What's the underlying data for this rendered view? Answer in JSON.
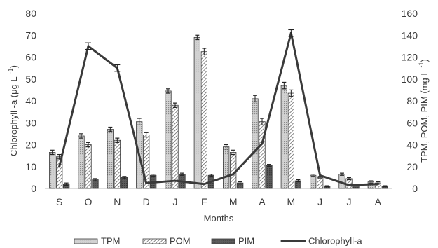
{
  "chart_data": {
    "type": "bar",
    "xlabel": "Months",
    "ylabel_left": "Chlorophyll  -a (μg L",
    "ylabel_left_sup": "-1",
    "ylabel_right": "TPM, POM, PIM (mg L",
    "ylabel_right_sup": "-1",
    "categories": [
      "S",
      "O",
      "N",
      "D",
      "J",
      "F",
      "M",
      "A",
      "M",
      "J",
      "J",
      "A"
    ],
    "ylim_left": [
      0,
      80
    ],
    "yticks_left": [
      "0",
      "10",
      "20",
      "30",
      "40",
      "50",
      "60",
      "70",
      "80"
    ],
    "ylim_right": [
      0,
      160
    ],
    "yticks_right": [
      "0",
      "20",
      "40",
      "60",
      "80",
      "100",
      "120",
      "140",
      "160"
    ],
    "grid": false,
    "legend_position": "bottom",
    "series": [
      {
        "name": "TPM",
        "axis": "right",
        "kind": "bar",
        "fill": "#c8c8c8",
        "hatch": "dots",
        "values": [
          33,
          48,
          54,
          61,
          89,
          138,
          38,
          82,
          94,
          12,
          13,
          6
        ],
        "errors": [
          2,
          2,
          2,
          3,
          2,
          2,
          2,
          3,
          3,
          1,
          1,
          1
        ]
      },
      {
        "name": "POM",
        "axis": "right",
        "kind": "bar",
        "fill": "#ffffff",
        "hatch": "diagonal",
        "values": [
          29,
          40,
          44,
          49,
          76,
          125,
          33,
          61,
          87,
          10,
          9,
          5
        ],
        "errors": [
          2,
          2,
          2,
          2,
          2,
          3,
          2,
          3,
          3,
          1,
          1,
          1
        ]
      },
      {
        "name": "PIM",
        "axis": "right",
        "kind": "bar",
        "fill": "#5a5a5a",
        "hatch": "crosshatch",
        "values": [
          4,
          8,
          10,
          12,
          13,
          12,
          5,
          21,
          7,
          2,
          3,
          2
        ],
        "errors": [
          1,
          1,
          1,
          1,
          1,
          1,
          1,
          1,
          1,
          0.5,
          0.5,
          0.5
        ]
      },
      {
        "name": "Chlorophyll-a",
        "axis": "left",
        "kind": "line",
        "color": "#3a3a3a",
        "values": [
          10,
          65,
          55,
          2.5,
          3.5,
          2,
          6.5,
          20.5,
          71,
          6,
          1.5,
          2
        ],
        "errors": [
          0,
          1.5,
          1.5,
          0,
          0,
          0,
          0,
          0,
          1.5,
          0,
          0,
          0
        ]
      }
    ],
    "legend": [
      {
        "label": "TPM",
        "series": 0
      },
      {
        "label": "POM",
        "series": 1
      },
      {
        "label": "PIM",
        "series": 2
      },
      {
        "label": "Chlorophyll-a",
        "series": 3
      }
    ]
  }
}
